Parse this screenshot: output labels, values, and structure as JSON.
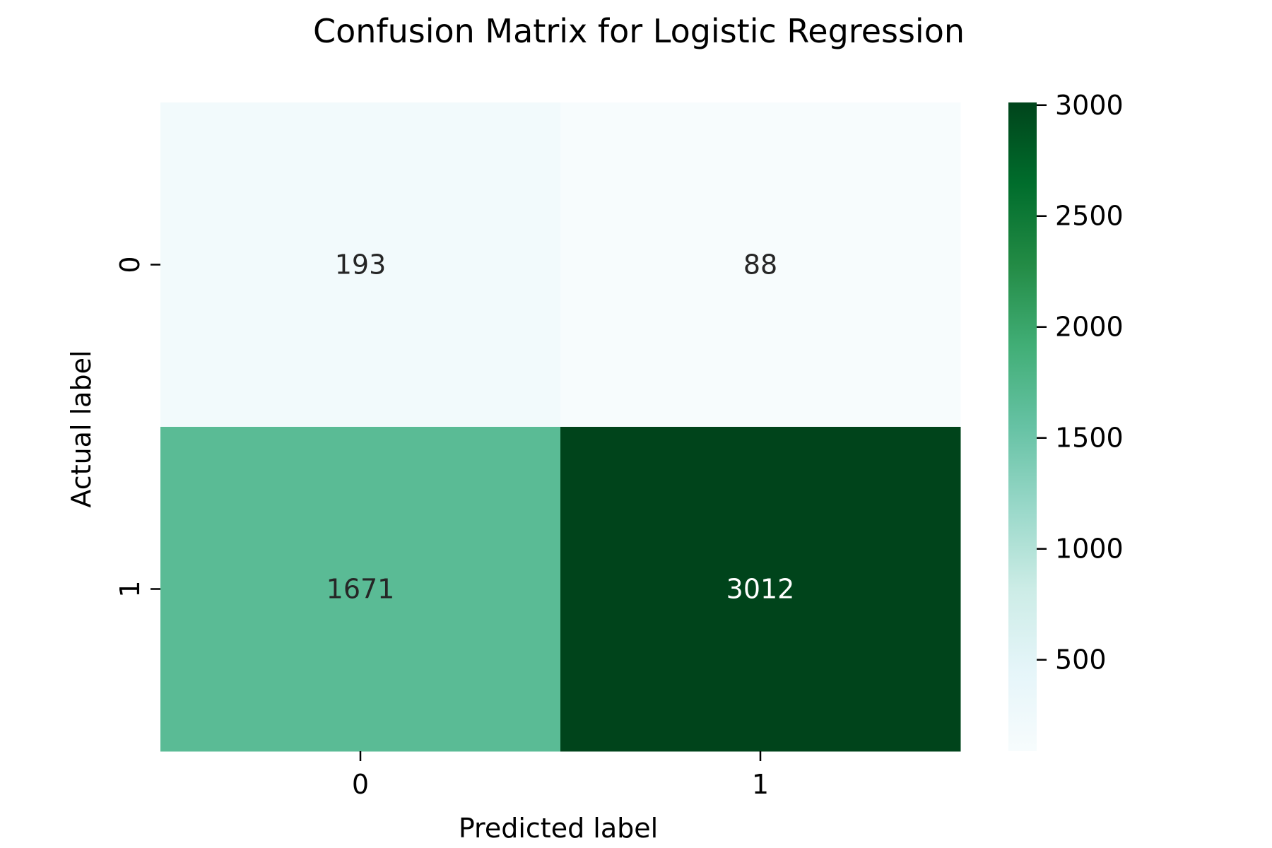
{
  "chart_data": {
    "type": "heatmap",
    "title": "Confusion Matrix for Logistic Regression",
    "xlabel": "Predicted label",
    "ylabel": "Actual label",
    "x_categories": [
      "0",
      "1"
    ],
    "y_categories": [
      "0",
      "1"
    ],
    "values": [
      [
        193,
        88
      ],
      [
        1671,
        3012
      ]
    ],
    "colormap": "BuGn",
    "colorbar": {
      "ticks": [
        500,
        1000,
        1500,
        2000,
        2500,
        3000
      ],
      "tick_labels": [
        "500",
        "1000",
        "1500",
        "2000",
        "2500",
        "3000"
      ],
      "range": [
        88,
        3012
      ]
    },
    "colors": {
      "low": "#f7fcfd",
      "high": "#00441b",
      "light_text": "#ffffff",
      "dark_text": "#262626"
    }
  }
}
